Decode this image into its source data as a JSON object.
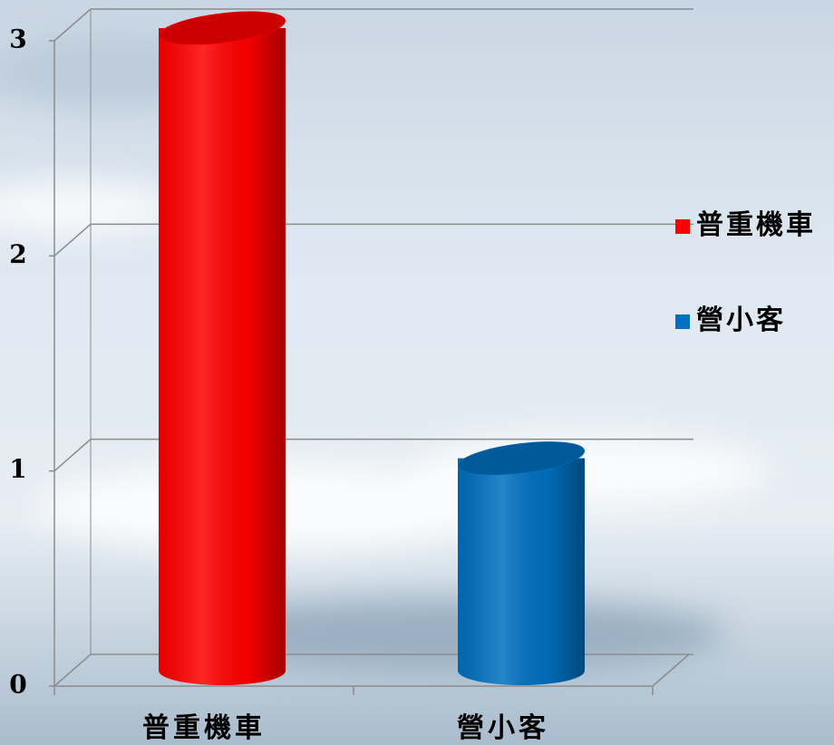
{
  "chart_data": {
    "type": "bar3d",
    "categories": [
      "普重機車",
      "營小客"
    ],
    "series": [
      {
        "name": "普重機車",
        "color": "#ff0000",
        "values": [
          3,
          null
        ]
      },
      {
        "name": "營小客",
        "color": "#0070c0",
        "values": [
          null,
          1
        ]
      }
    ],
    "ylim": [
      0,
      3
    ],
    "yticks": [
      0,
      1,
      2,
      3
    ],
    "grid": true,
    "legend": "right"
  }
}
